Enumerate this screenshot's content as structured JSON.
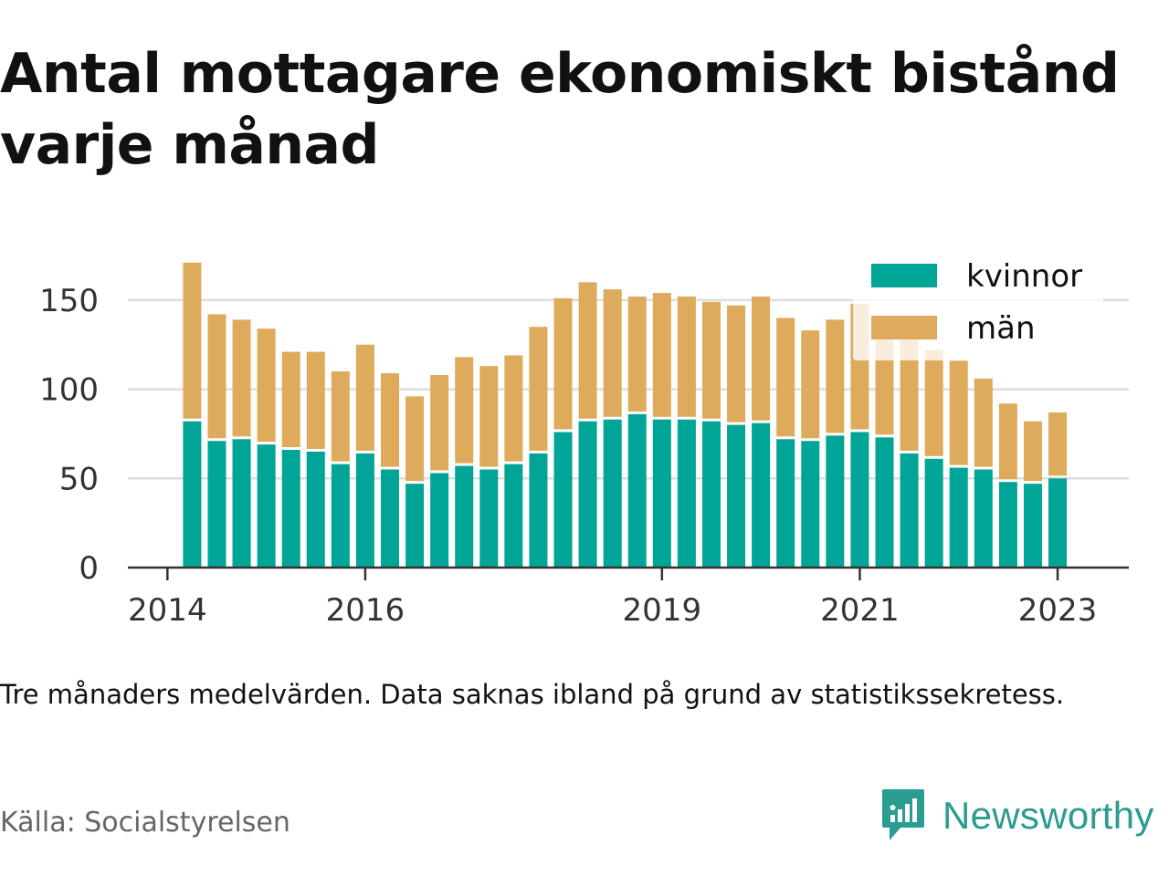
{
  "title": "Antal mottagare ekonomiskt bistånd varje månad",
  "note": "Tre månaders medelvärden. Data saknas ibland på grund av statistikssekretess.",
  "source": "Källa: Socialstyrelsen",
  "brand": {
    "name": "Newsworthy",
    "icon": "newsworthy-logo-icon",
    "color": "#2b9c90"
  },
  "colors": {
    "kvinnor": "#00a597",
    "man": "#deab5c",
    "grid": "#dddddd",
    "axis": "#333333"
  },
  "chart_data": {
    "type": "bar",
    "stacked": true,
    "x": [
      "2014-04",
      "2014-07",
      "2014-10",
      "2015-01",
      "2015-04",
      "2015-07",
      "2015-10",
      "2016-01",
      "2016-04",
      "2016-07",
      "2016-10",
      "2017-01",
      "2017-04",
      "2017-07",
      "2017-10",
      "2018-01",
      "2018-04",
      "2018-07",
      "2018-10",
      "2019-01",
      "2019-04",
      "2019-07",
      "2019-10",
      "2020-01",
      "2020-04",
      "2020-07",
      "2020-10",
      "2021-01",
      "2021-04",
      "2021-07",
      "2021-10",
      "2022-01",
      "2022-04",
      "2022-07",
      "2022-10",
      "2023-01",
      "2023-04"
    ],
    "series": [
      {
        "name": "kvinnor",
        "color": "#00a597",
        "values": [
          82,
          71,
          72,
          69,
          66,
          65,
          58,
          64,
          55,
          47,
          53,
          57,
          55,
          58,
          64,
          76,
          82,
          83,
          86,
          83,
          83,
          82,
          80,
          81,
          72,
          71,
          74,
          76,
          73,
          64,
          61,
          56,
          55,
          48,
          47,
          50,
          0
        ]
      },
      {
        "name": "män",
        "color": "#deab5c",
        "values": [
          89,
          71,
          67,
          65,
          55,
          56,
          52,
          61,
          54,
          49,
          55,
          61,
          58,
          61,
          71,
          75,
          78,
          73,
          66,
          71,
          69,
          67,
          67,
          71,
          68,
          62,
          65,
          72,
          64,
          67,
          61,
          60,
          51,
          44,
          35,
          37,
          0
        ]
      }
    ],
    "xticks": [
      "2014",
      "2016",
      "2019",
      "2021",
      "2023"
    ],
    "yticks": [
      0,
      50,
      100,
      150
    ],
    "ylim": [
      0,
      175
    ],
    "grid": true,
    "legend": "top-right"
  }
}
